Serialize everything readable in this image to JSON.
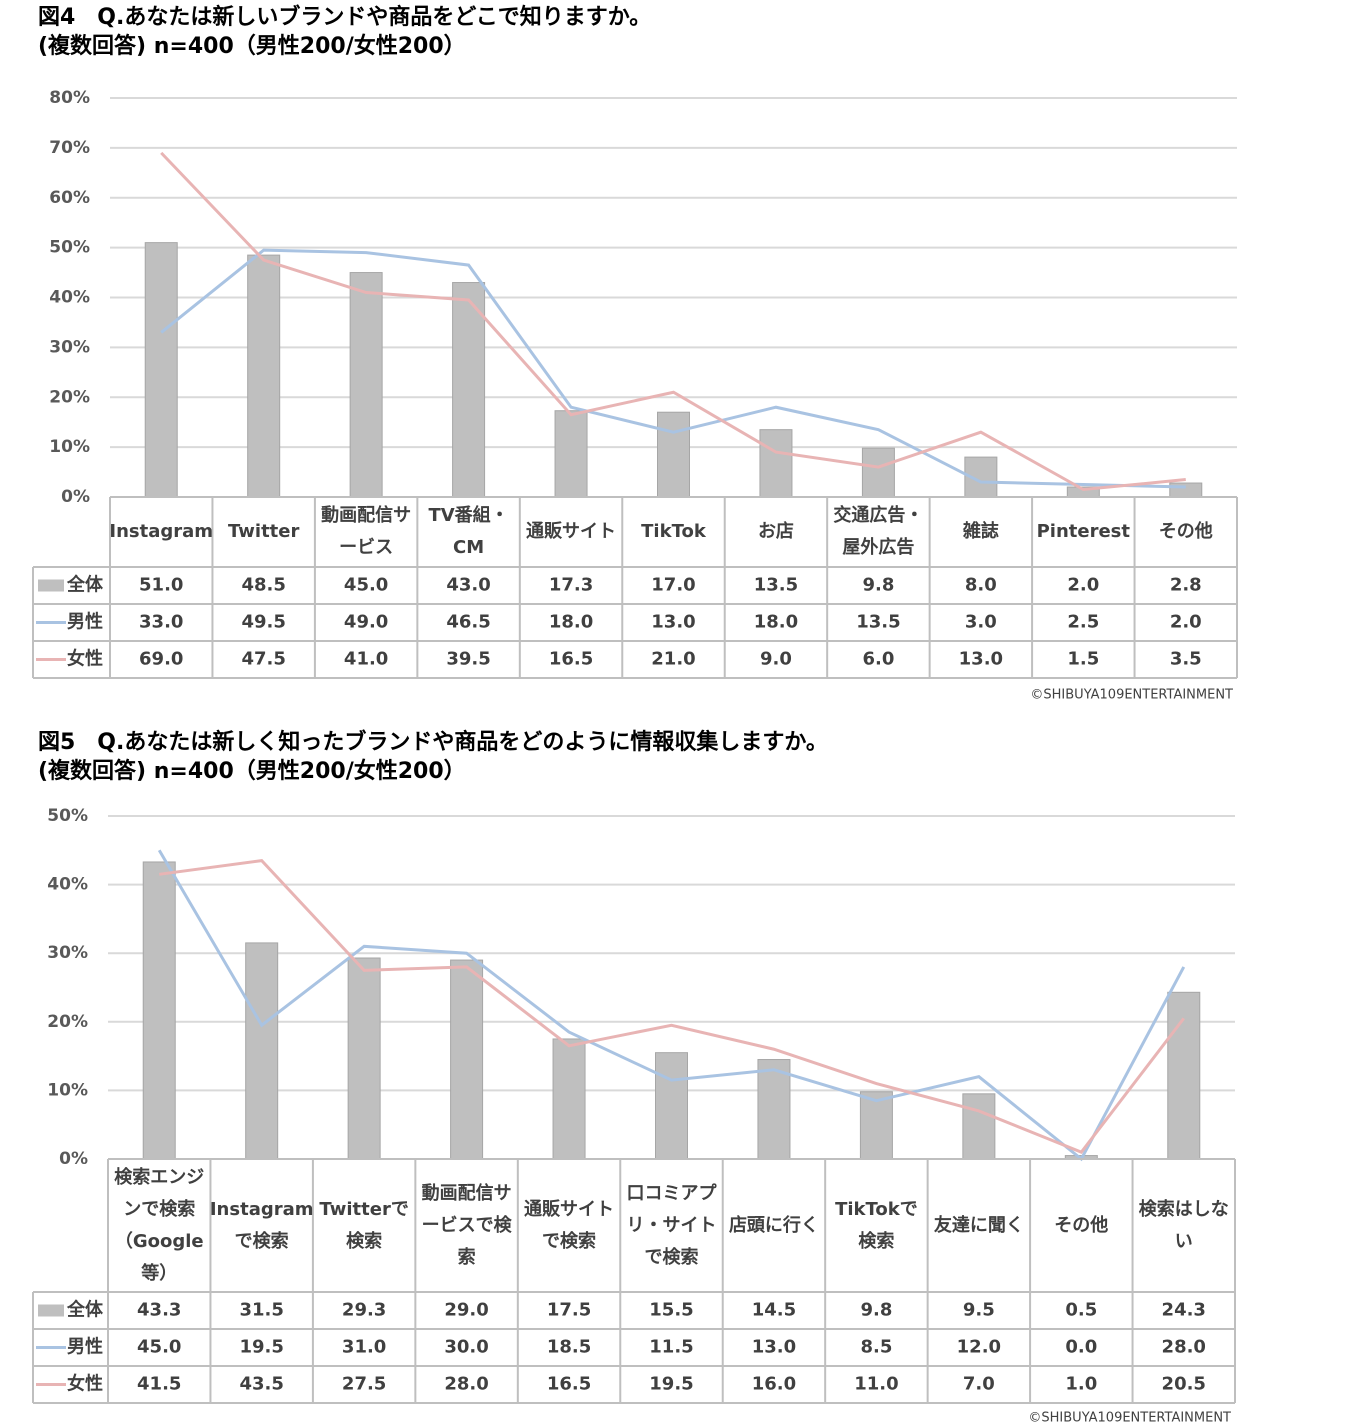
{
  "chart_data": [
    {
      "type": "combo",
      "title": "図4　Q.あなたは新しいブランドや商品をどこで知りますか。",
      "subtitle": "(複数回答) n=400（男性200/女性200）",
      "categories": [
        "Instagram",
        "Twitter",
        "動画配信サービス",
        "TV番組・CM",
        "通販サイト",
        "TikTok",
        "お店",
        "交通広告・屋外広告",
        "雑誌",
        "Pinterest",
        "その他"
      ],
      "series": [
        {
          "name": "全体",
          "kind": "bar",
          "color": "#bfbfbf",
          "values": [
            51,
            48.5,
            45,
            43,
            17.3,
            17,
            13.5,
            9.8,
            8,
            2,
            2.8
          ],
          "value_labels": [
            "51.0",
            "48.5",
            "45.0",
            "43.0",
            "17.3",
            "17.0",
            "13.5",
            "9.8",
            "8.0",
            "2.0",
            "2.8"
          ]
        },
        {
          "name": "男性",
          "kind": "line",
          "color": "#a9c3e2",
          "values": [
            33,
            49.5,
            49,
            46.5,
            18,
            13,
            18,
            13.5,
            3,
            2.5,
            2
          ],
          "value_labels": [
            "33.0",
            "49.5",
            "49.0",
            "46.5",
            "18.0",
            "13.0",
            "18.0",
            "13.5",
            "3.0",
            "2.5",
            "2.0"
          ]
        },
        {
          "name": "女性",
          "kind": "line",
          "color": "#e8b4b4",
          "values": [
            69,
            47.5,
            41,
            39.5,
            16.5,
            21,
            9,
            6,
            13,
            1.5,
            3.5
          ],
          "value_labels": [
            "69.0",
            "47.5",
            "41.0",
            "39.5",
            "16.5",
            "21.0",
            "9.0",
            "6.0",
            "13.0",
            "1.5",
            "3.5"
          ]
        }
      ],
      "ylim": [
        0,
        80
      ],
      "yticks": [
        {
          "value": 0,
          "label": "0%"
        },
        {
          "value": 10,
          "label": "10%"
        },
        {
          "value": 20,
          "label": "20%"
        },
        {
          "value": 30,
          "label": "30%"
        },
        {
          "value": 40,
          "label": "40%"
        },
        {
          "value": 50,
          "label": "50%"
        },
        {
          "value": 60,
          "label": "60%"
        },
        {
          "value": 70,
          "label": "70%"
        },
        {
          "value": 80,
          "label": "80%"
        }
      ],
      "grid": true,
      "credit": "©SHIBUYA109ENTERTAINMENT"
    },
    {
      "type": "combo",
      "title": "図5　Q.あなたは新しく知ったブランドや商品をどのように情報収集しますか。",
      "subtitle": "(複数回答) n=400（男性200/女性200）",
      "categories": [
        "検索エンジンで検索（Google等）",
        "Instagramで検索",
        "Twitterで検索",
        "動画配信サービスで検索",
        "通販サイトで検索",
        "口コミアプリ・サイトで検索",
        "店頭に行く",
        "TikTokで検索",
        "友達に聞く",
        "その他",
        "検索はしない"
      ],
      "series": [
        {
          "name": "全体",
          "kind": "bar",
          "color": "#bfbfbf",
          "values": [
            43.3,
            31.5,
            29.3,
            29,
            17.5,
            15.5,
            14.5,
            9.8,
            9.5,
            0.5,
            24.3
          ],
          "value_labels": [
            "43.3",
            "31.5",
            "29.3",
            "29.0",
            "17.5",
            "15.5",
            "14.5",
            "9.8",
            "9.5",
            "0.5",
            "24.3"
          ]
        },
        {
          "name": "男性",
          "kind": "line",
          "color": "#a9c3e2",
          "values": [
            45,
            19.5,
            31,
            30,
            18.5,
            11.5,
            13,
            8.5,
            12,
            0,
            28
          ],
          "value_labels": [
            "45.0",
            "19.5",
            "31.0",
            "30.0",
            "18.5",
            "11.5",
            "13.0",
            "8.5",
            "12.0",
            "0.0",
            "28.0"
          ]
        },
        {
          "name": "女性",
          "kind": "line",
          "color": "#e8b4b4",
          "values": [
            41.5,
            43.5,
            27.5,
            28,
            16.5,
            19.5,
            16,
            11,
            7,
            1,
            20.5
          ],
          "value_labels": [
            "41.5",
            "43.5",
            "27.5",
            "28.0",
            "16.5",
            "19.5",
            "16.0",
            "11.0",
            "7.0",
            "1.0",
            "20.5"
          ]
        }
      ],
      "ylim": [
        0,
        50
      ],
      "yticks": [
        {
          "value": 0,
          "label": "0%"
        },
        {
          "value": 10,
          "label": "10%"
        },
        {
          "value": 20,
          "label": "20%"
        },
        {
          "value": 30,
          "label": "30%"
        },
        {
          "value": 40,
          "label": "40%"
        },
        {
          "value": 50,
          "label": "50%"
        }
      ],
      "grid": true,
      "credit": "©SHIBUYA109ENTERTAINMENT"
    }
  ]
}
